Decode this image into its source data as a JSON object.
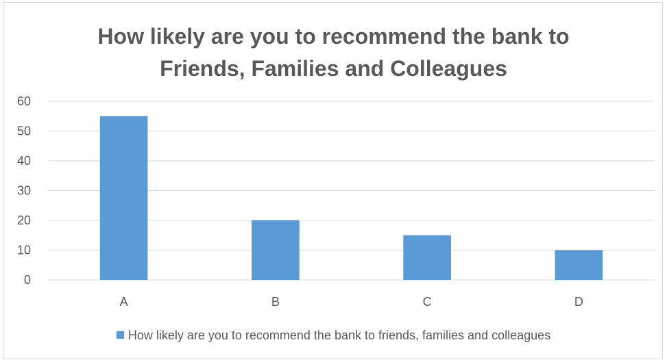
{
  "chart_data": {
    "type": "bar",
    "title_lines": [
      "How likely are you to recommend the bank to",
      "Friends, Families and Colleagues"
    ],
    "categories": [
      "A",
      "B",
      "C",
      "D"
    ],
    "series": [
      {
        "name": "How likely are you to recommend the bank to friends, families and colleagues",
        "values": [
          55,
          20,
          15,
          10
        ],
        "color": "#5b9bd5"
      }
    ],
    "ylim": [
      0,
      60
    ],
    "yticks": [
      "0",
      "10",
      "20",
      "30",
      "40",
      "50",
      "60"
    ],
    "grid": true,
    "legend_position": "bottom",
    "xlabel": "",
    "ylabel": ""
  }
}
